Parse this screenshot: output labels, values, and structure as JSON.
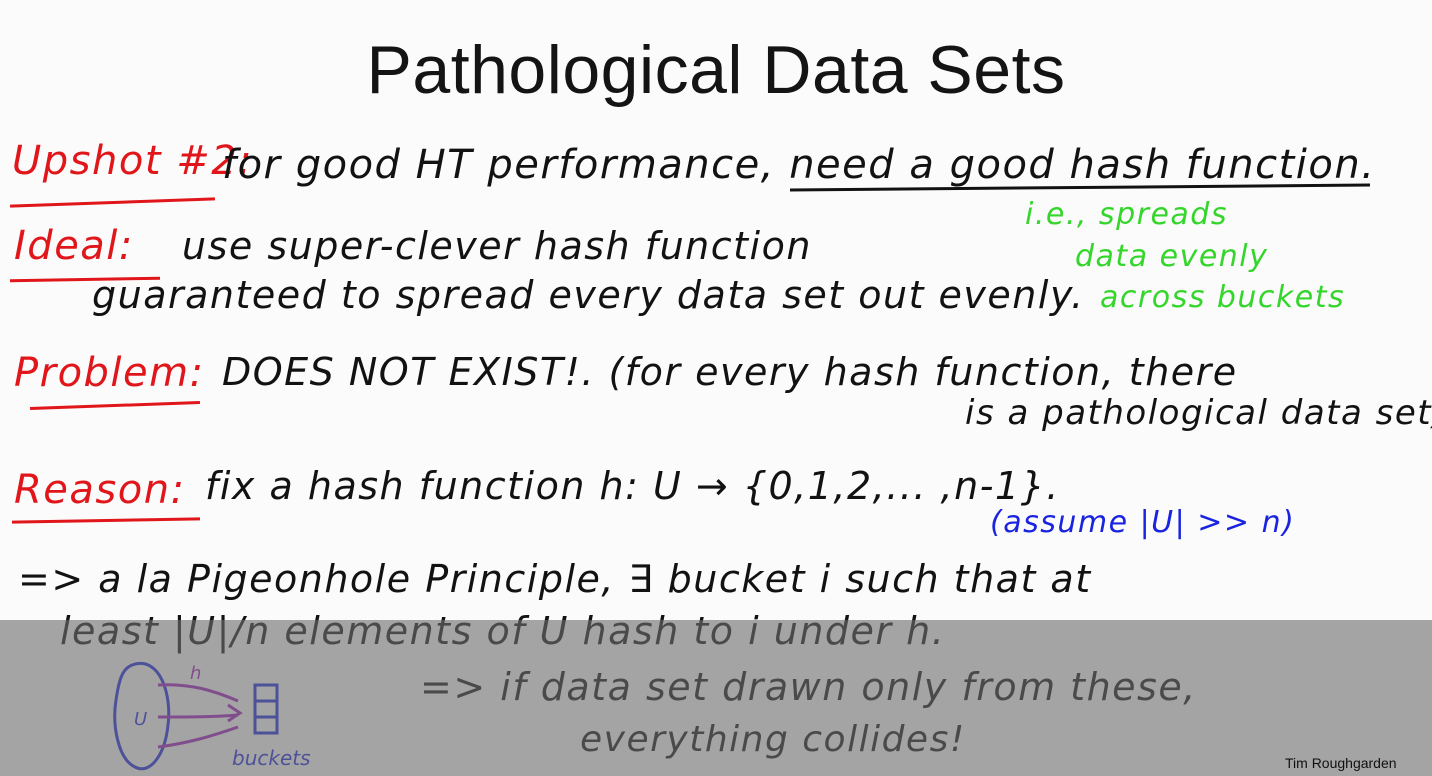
{
  "slide": {
    "title": "Pathological Data Sets",
    "credit": "Tim Roughgarden"
  },
  "upshot": {
    "label": "Upshot #2:",
    "text": "for good HT performance, need a good hash function."
  },
  "ideal": {
    "label": "Ideal:",
    "line1": "use super-clever hash function",
    "line2": "guaranteed to spread every data set out evenly.",
    "note": [
      "i.e., spreads",
      "data evenly",
      "across buckets"
    ]
  },
  "problem": {
    "label": "Problem:",
    "line1": "DOES NOT EXIST!. (for every hash function, there",
    "line2": "is a pathological data set)"
  },
  "reason": {
    "label": "Reason:",
    "text": "fix a hash function h: U → {0,1,2,... ,n-1}.",
    "note": "(assume |U| >> n)"
  },
  "implication": {
    "line1": "=> a la Pigeonhole Principle, ∃ bucket i such that at",
    "line2": "least |U|/n elements of U hash to i under h.",
    "line3": "=> if data set drawn only from these,",
    "line4": "everything collides!"
  },
  "diagram": {
    "set_label": "U",
    "arrow_label": "h",
    "target_label": "buckets"
  },
  "colors": {
    "label_red": "#e0161b",
    "ink_black": "#121212",
    "note_green": "#35d62c",
    "note_blue": "#1a24e0",
    "arrow_purple": "#a01cc0"
  }
}
